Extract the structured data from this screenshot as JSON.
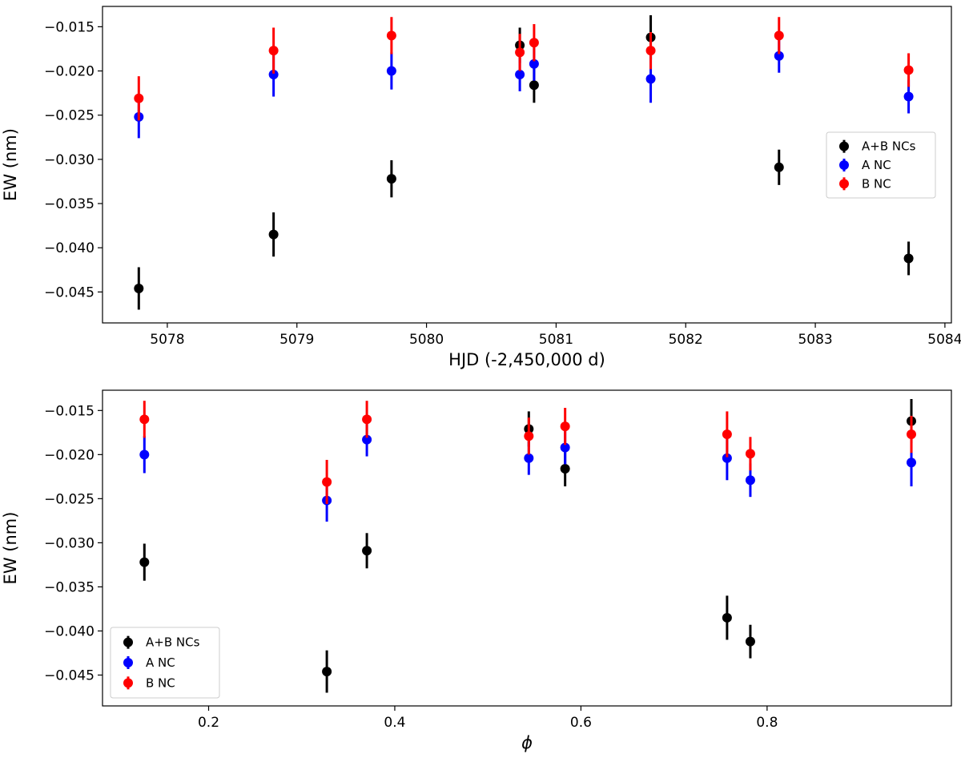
{
  "chart_data": [
    {
      "type": "scatter",
      "xlabel": "HJD (-2,450,000 d)",
      "ylabel": "EW (nm)",
      "xlim": [
        5077.5,
        5084.05
      ],
      "ylim": [
        -0.0485,
        -0.0127
      ],
      "xticks": [
        5078,
        5079,
        5080,
        5081,
        5082,
        5083,
        5084
      ],
      "xtick_labels": [
        "5078",
        "5079",
        "5080",
        "5081",
        "5082",
        "5083",
        "5084"
      ],
      "yticks": [
        -0.045,
        -0.04,
        -0.035,
        -0.03,
        -0.025,
        -0.02,
        -0.015
      ],
      "ytick_labels": [
        "−0.045",
        "−0.040",
        "−0.035",
        "−0.030",
        "−0.025",
        "−0.020",
        "−0.015"
      ],
      "legend_position": "right",
      "series": [
        {
          "name": "A+B NCs",
          "color": "#000000",
          "x": [
            5077.78,
            5078.82,
            5079.73,
            5080.72,
            5080.83,
            5081.73,
            5082.72,
            5083.72
          ],
          "y": [
            -0.0446,
            -0.0385,
            -0.0322,
            -0.0171,
            -0.0216,
            -0.0162,
            -0.0309,
            -0.0412
          ],
          "err": [
            0.0024,
            0.0025,
            0.0021,
            0.002,
            0.002,
            0.0025,
            0.002,
            0.0019
          ]
        },
        {
          "name": "A NC",
          "color": "#0000ff",
          "x": [
            5077.78,
            5078.82,
            5079.73,
            5080.72,
            5080.83,
            5081.73,
            5082.72,
            5083.72
          ],
          "y": [
            -0.0252,
            -0.0204,
            -0.02,
            -0.0204,
            -0.0192,
            -0.0209,
            -0.0183,
            -0.0229
          ],
          "err": [
            0.0024,
            0.0025,
            0.0021,
            0.0019,
            0.0019,
            0.0027,
            0.0019,
            0.0019
          ]
        },
        {
          "name": "B NC",
          "color": "#ff0000",
          "x": [
            5077.78,
            5078.82,
            5079.73,
            5080.72,
            5080.83,
            5081.73,
            5082.72,
            5083.72
          ],
          "y": [
            -0.0231,
            -0.0177,
            -0.016,
            -0.0179,
            -0.0168,
            -0.0177,
            -0.016,
            -0.0199
          ],
          "err": [
            0.0025,
            0.0026,
            0.0021,
            0.0021,
            0.0021,
            0.0021,
            0.0021,
            0.0019
          ]
        }
      ]
    },
    {
      "type": "scatter",
      "xlabel": "ϕ",
      "ylabel": "EW (nm)",
      "xlim": [
        0.086,
        0.998
      ],
      "ylim": [
        -0.0485,
        -0.0127
      ],
      "xticks": [
        0.2,
        0.4,
        0.6,
        0.8
      ],
      "xtick_labels": [
        "0.2",
        "0.4",
        "0.6",
        "0.8"
      ],
      "yticks": [
        -0.045,
        -0.04,
        -0.035,
        -0.03,
        -0.025,
        -0.02,
        -0.015
      ],
      "ytick_labels": [
        "−0.045",
        "−0.040",
        "−0.035",
        "−0.030",
        "−0.025",
        "−0.020",
        "−0.015"
      ],
      "legend_position": "lower-left",
      "series": [
        {
          "name": "A+B NCs",
          "color": "#000000",
          "x": [
            0.131,
            0.327,
            0.37,
            0.544,
            0.583,
            0.757,
            0.782,
            0.955
          ],
          "y": [
            -0.0322,
            -0.0446,
            -0.0309,
            -0.0171,
            -0.0216,
            -0.0385,
            -0.0412,
            -0.0162
          ],
          "err": [
            0.0021,
            0.0024,
            0.002,
            0.002,
            0.002,
            0.0025,
            0.0019,
            0.0025
          ]
        },
        {
          "name": "A NC",
          "color": "#0000ff",
          "x": [
            0.131,
            0.327,
            0.37,
            0.544,
            0.583,
            0.757,
            0.782,
            0.955
          ],
          "y": [
            -0.02,
            -0.0252,
            -0.0183,
            -0.0204,
            -0.0192,
            -0.0204,
            -0.0229,
            -0.0209
          ],
          "err": [
            0.0021,
            0.0024,
            0.0019,
            0.0019,
            0.0019,
            0.0025,
            0.0019,
            0.0027
          ]
        },
        {
          "name": "B NC",
          "color": "#ff0000",
          "x": [
            0.131,
            0.327,
            0.37,
            0.544,
            0.583,
            0.757,
            0.782,
            0.955
          ],
          "y": [
            -0.016,
            -0.0231,
            -0.016,
            -0.0179,
            -0.0168,
            -0.0177,
            -0.0199,
            -0.0177
          ],
          "err": [
            0.0021,
            0.0025,
            0.0021,
            0.0021,
            0.0021,
            0.0026,
            0.0019,
            0.0021
          ]
        }
      ]
    }
  ]
}
